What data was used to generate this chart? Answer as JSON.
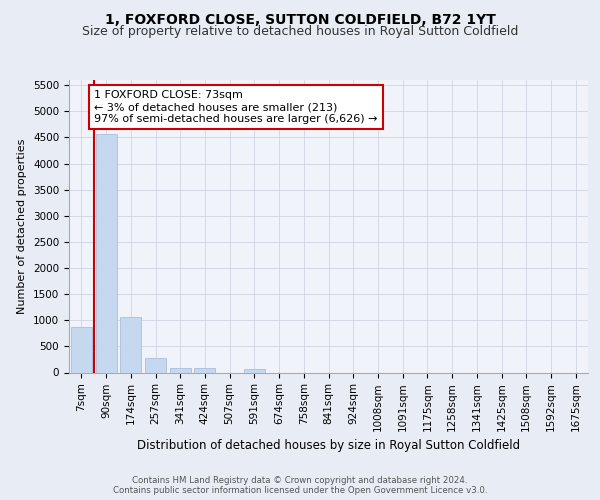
{
  "title": "1, FOXFORD CLOSE, SUTTON COLDFIELD, B72 1YT",
  "subtitle": "Size of property relative to detached houses in Royal Sutton Coldfield",
  "xlabel": "Distribution of detached houses by size in Royal Sutton Coldfield",
  "ylabel": "Number of detached properties",
  "categories": [
    "7sqm",
    "90sqm",
    "174sqm",
    "257sqm",
    "341sqm",
    "424sqm",
    "507sqm",
    "591sqm",
    "674sqm",
    "758sqm",
    "841sqm",
    "924sqm",
    "1008sqm",
    "1091sqm",
    "1175sqm",
    "1258sqm",
    "1341sqm",
    "1425sqm",
    "1508sqm",
    "1592sqm",
    "1675sqm"
  ],
  "values": [
    870,
    4560,
    1060,
    280,
    95,
    95,
    0,
    65,
    0,
    0,
    0,
    0,
    0,
    0,
    0,
    0,
    0,
    0,
    0,
    0,
    0
  ],
  "bar_color": "#c5d8f0",
  "bar_edge_color": "#a0b8d8",
  "vline_color": "#cc0000",
  "annotation_text": "1 FOXFORD CLOSE: 73sqm\n← 3% of detached houses are smaller (213)\n97% of semi-detached houses are larger (6,626) →",
  "annotation_box_color": "#ffffff",
  "annotation_box_edge": "#cc0000",
  "ylim": [
    0,
    5600
  ],
  "yticks": [
    0,
    500,
    1000,
    1500,
    2000,
    2500,
    3000,
    3500,
    4000,
    4500,
    5000,
    5500
  ],
  "footer": "Contains HM Land Registry data © Crown copyright and database right 2024.\nContains public sector information licensed under the Open Government Licence v3.0.",
  "bg_color": "#e8edf5",
  "plot_bg_color": "#f0f4fa",
  "grid_color": "#c8d0dc",
  "title_fontsize": 10,
  "subtitle_fontsize": 9,
  "ylabel_fontsize": 8,
  "xlabel_fontsize": 8.5,
  "tick_fontsize": 7.5,
  "annot_fontsize": 8
}
